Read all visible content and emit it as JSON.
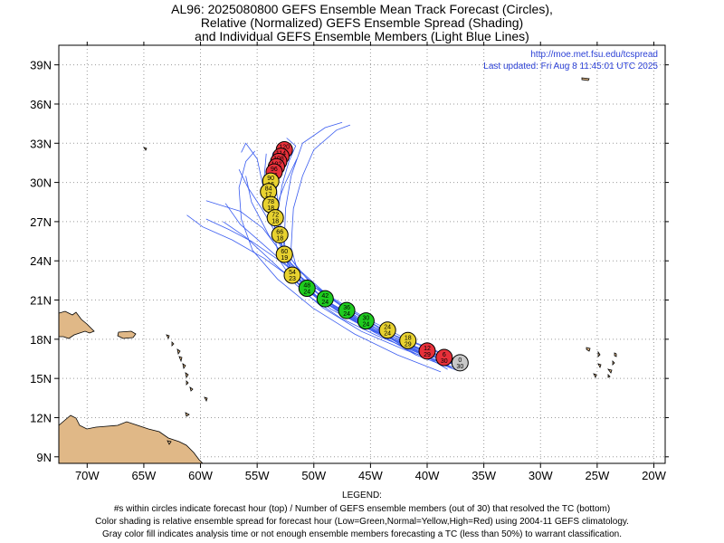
{
  "title_lines": [
    "AL96: 2025080800 GEFS Ensemble Mean Track Forecast (Circles),",
    "Relative (Normalized) GEFS Ensemble Spread (Shading)",
    "and Individual GEFS Ensemble Members (Light Blue Lines)"
  ],
  "credit": {
    "url": "http://moe.met.fsu.edu/tcspread",
    "updated": "Last updated: Fri Aug 8 11:45:01 UTC 2025"
  },
  "axes": {
    "lon_ticks": [
      "70W",
      "65W",
      "60W",
      "55W",
      "50W",
      "45W",
      "40W",
      "35W",
      "30W",
      "25W",
      "20W"
    ],
    "lat_ticks": [
      "9N",
      "12N",
      "15N",
      "18N",
      "21N",
      "24N",
      "27N",
      "30N",
      "33N",
      "36N",
      "39N"
    ],
    "lon_range": [
      -72.5,
      -19.0
    ],
    "lat_range": [
      8.5,
      40.5
    ],
    "grid": true
  },
  "colors": {
    "green": "#1fcc1f",
    "yellow": "#e8d230",
    "red": "#e8303a",
    "gray": "#c8c8c8",
    "member_line": "#3a5cf0",
    "land": "#e0b887"
  },
  "chart_data": {
    "type": "map-track",
    "mean_track": [
      {
        "hour": "0",
        "members": "30",
        "lon": -37.1,
        "lat": 16.2,
        "spread": "gray"
      },
      {
        "hour": "6",
        "members": "30",
        "lon": -38.5,
        "lat": 16.6,
        "spread": "red"
      },
      {
        "hour": "12",
        "members": "29",
        "lon": -40.0,
        "lat": 17.1,
        "spread": "red"
      },
      {
        "hour": "18",
        "members": "29",
        "lon": -41.7,
        "lat": 17.9,
        "spread": "yellow"
      },
      {
        "hour": "24",
        "members": "24",
        "lon": -43.5,
        "lat": 18.7,
        "spread": "yellow"
      },
      {
        "hour": "30",
        "members": "24",
        "lon": -45.4,
        "lat": 19.4,
        "spread": "green"
      },
      {
        "hour": "36",
        "members": "24",
        "lon": -47.1,
        "lat": 20.2,
        "spread": "green"
      },
      {
        "hour": "42",
        "members": "24",
        "lon": -49.0,
        "lat": 21.1,
        "spread": "green"
      },
      {
        "hour": "48",
        "members": "24",
        "lon": -50.6,
        "lat": 21.9,
        "spread": "green"
      },
      {
        "hour": "54",
        "members": "23",
        "lon": -51.9,
        "lat": 22.9,
        "spread": "yellow"
      },
      {
        "hour": "60",
        "members": "19",
        "lon": -52.6,
        "lat": 24.5,
        "spread": "yellow"
      },
      {
        "hour": "66",
        "members": "18",
        "lon": -53.0,
        "lat": 26.0,
        "spread": "yellow"
      },
      {
        "hour": "72",
        "members": "18",
        "lon": -53.4,
        "lat": 27.3,
        "spread": "yellow"
      },
      {
        "hour": "78",
        "members": "18",
        "lon": -53.8,
        "lat": 28.3,
        "spread": "yellow"
      },
      {
        "hour": "84",
        "members": "17",
        "lon": -54.0,
        "lat": 29.3,
        "spread": "yellow"
      },
      {
        "hour": "90",
        "members": "16",
        "lon": -53.8,
        "lat": 30.1,
        "spread": "yellow"
      },
      {
        "hour": "96",
        "members": "16",
        "lon": -53.5,
        "lat": 30.8,
        "spread": "red"
      },
      {
        "hour": "102",
        "members": "16",
        "lon": -53.3,
        "lat": 31.2,
        "spread": "red"
      },
      {
        "hour": "108",
        "members": "16",
        "lon": -53.1,
        "lat": 31.6,
        "spread": "red"
      },
      {
        "hour": "114",
        "members": "16",
        "lon": -52.9,
        "lat": 32.0,
        "spread": "red"
      },
      {
        "hour": "120",
        "members": "16",
        "lon": -52.6,
        "lat": 32.5,
        "spread": "red"
      }
    ],
    "members": [
      [
        [
          -37.3,
          15.6
        ],
        [
          -41,
          16.8
        ],
        [
          -45,
          18.8
        ],
        [
          -49,
          21.0
        ],
        [
          -52,
          23.5
        ],
        [
          -54,
          26.0
        ],
        [
          -55.5,
          28.5
        ],
        [
          -56,
          30.5
        ]
      ],
      [
        [
          -37.8,
          15.8
        ],
        [
          -42,
          17.4
        ],
        [
          -46,
          19.5
        ],
        [
          -49.5,
          21.8
        ],
        [
          -52.5,
          24.2
        ],
        [
          -54.5,
          26.5
        ],
        [
          -56.5,
          27.8
        ],
        [
          -58,
          28.2
        ],
        [
          -59.5,
          28.6
        ]
      ],
      [
        [
          -38,
          15.9
        ],
        [
          -42.5,
          17.8
        ],
        [
          -46.5,
          19.9
        ],
        [
          -50,
          22.0
        ],
        [
          -53,
          24.0
        ],
        [
          -55.5,
          25.5
        ],
        [
          -57.5,
          26.4
        ],
        [
          -59.5,
          27.2
        ]
      ],
      [
        [
          -37.5,
          16.0
        ],
        [
          -41.5,
          17.4
        ],
        [
          -45.5,
          19.0
        ],
        [
          -49.5,
          21.0
        ],
        [
          -53,
          23.4
        ],
        [
          -56,
          25.8
        ],
        [
          -58,
          27.0
        ]
      ],
      [
        [
          -38.2,
          15.7
        ],
        [
          -43,
          18.2
        ],
        [
          -47.5,
          20.6
        ],
        [
          -51,
          22.6
        ],
        [
          -54,
          24.9
        ],
        [
          -56.5,
          26.8
        ],
        [
          -57.8,
          28.4
        ]
      ],
      [
        [
          -37.6,
          16.3
        ],
        [
          -41,
          17.3
        ],
        [
          -44,
          18.4
        ],
        [
          -47,
          19.8
        ],
        [
          -50,
          21.4
        ],
        [
          -52,
          23.2
        ],
        [
          -53,
          25.5
        ],
        [
          -53.6,
          28
        ],
        [
          -54,
          30.5
        ],
        [
          -53.6,
          32.3
        ]
      ],
      [
        [
          -38,
          16.5
        ],
        [
          -41.5,
          17.5
        ],
        [
          -45,
          18.7
        ],
        [
          -48.5,
          20.3
        ],
        [
          -51,
          22.0
        ],
        [
          -52.5,
          24.5
        ],
        [
          -53,
          27.0
        ],
        [
          -53.3,
          29.5
        ],
        [
          -53,
          31.5
        ],
        [
          -52.6,
          32.6
        ]
      ],
      [
        [
          -37.4,
          16.1
        ],
        [
          -40.8,
          17.0
        ],
        [
          -44.5,
          18.3
        ],
        [
          -47.6,
          19.6
        ],
        [
          -50.3,
          21.2
        ],
        [
          -52.2,
          23.0
        ],
        [
          -52.6,
          25.5
        ],
        [
          -52.5,
          28.0
        ],
        [
          -52,
          30.5
        ],
        [
          -51,
          33
        ],
        [
          -49,
          34.2
        ],
        [
          -47.5,
          34.6
        ]
      ],
      [
        [
          -37.9,
          16.6
        ],
        [
          -41.4,
          17.8
        ],
        [
          -45.2,
          19.1
        ],
        [
          -48.6,
          20.8
        ],
        [
          -51.2,
          22.5
        ],
        [
          -52,
          25
        ],
        [
          -51.8,
          28
        ],
        [
          -51,
          30.5
        ],
        [
          -50,
          32.5
        ],
        [
          -48,
          34
        ],
        [
          -46.8,
          34.4
        ]
      ],
      [
        [
          -37.2,
          15.9
        ],
        [
          -40.6,
          17.2
        ],
        [
          -44.2,
          18.9
        ],
        [
          -47.8,
          20.7
        ],
        [
          -50.6,
          22.6
        ],
        [
          -52.6,
          24.8
        ],
        [
          -53.8,
          27.4
        ],
        [
          -54.5,
          29.8
        ],
        [
          -55,
          31.8
        ],
        [
          -56,
          33.0
        ],
        [
          -56.4,
          32.3
        ]
      ],
      [
        [
          -38.4,
          16.1
        ],
        [
          -42.2,
          17.6
        ],
        [
          -46,
          19.2
        ],
        [
          -49.4,
          21.0
        ],
        [
          -51.8,
          23.1
        ],
        [
          -53.1,
          25.4
        ],
        [
          -53.8,
          27.9
        ],
        [
          -54.4,
          30.2
        ],
        [
          -54.2,
          32.2
        ]
      ],
      [
        [
          -38.8,
          15.5
        ],
        [
          -42.6,
          16.8
        ],
        [
          -46.4,
          18.4
        ],
        [
          -50.1,
          20.4
        ],
        [
          -53.2,
          22.6
        ],
        [
          -55.4,
          24.8
        ],
        [
          -56.4,
          27.2
        ],
        [
          -56.6,
          29.6
        ],
        [
          -56,
          31.6
        ],
        [
          -55.2,
          32.4
        ]
      ],
      [
        [
          -37.7,
          16.4
        ],
        [
          -41.2,
          17.5
        ],
        [
          -44.9,
          18.9
        ],
        [
          -48.2,
          20.5
        ],
        [
          -50.8,
          22.3
        ],
        [
          -52.4,
          24.3
        ],
        [
          -53.4,
          26.2
        ],
        [
          -54.6,
          28.0
        ],
        [
          -55.8,
          29.6
        ],
        [
          -56.6,
          31.0
        ]
      ],
      [
        [
          -38.1,
          16.0
        ],
        [
          -42,
          17.2
        ],
        [
          -45.8,
          18.6
        ],
        [
          -49.2,
          20.4
        ],
        [
          -51.6,
          22.2
        ],
        [
          -53,
          24
        ],
        [
          -53.5,
          26
        ],
        [
          -53.4,
          28
        ],
        [
          -52.5,
          30
        ],
        [
          -51.5,
          31.8
        ]
      ],
      [
        [
          -37.5,
          15.8
        ],
        [
          -41,
          16.9
        ],
        [
          -44.6,
          18.5
        ],
        [
          -48,
          20.2
        ],
        [
          -51.2,
          22.2
        ],
        [
          -54.4,
          24.2
        ],
        [
          -57.2,
          25.6
        ],
        [
          -59.8,
          26.6
        ],
        [
          -61.2,
          27.5
        ]
      ],
      [
        [
          -38,
          16.7
        ],
        [
          -41.8,
          18.0
        ],
        [
          -45.4,
          19.6
        ],
        [
          -48.8,
          21.4
        ],
        [
          -51.4,
          23.4
        ],
        [
          -53,
          25.4
        ],
        [
          -53.2,
          27.6
        ],
        [
          -52.8,
          29.8
        ],
        [
          -52.2,
          31.6
        ],
        [
          -51.6,
          32.8
        ],
        [
          -52.4,
          33.4
        ]
      ]
    ]
  }
}
